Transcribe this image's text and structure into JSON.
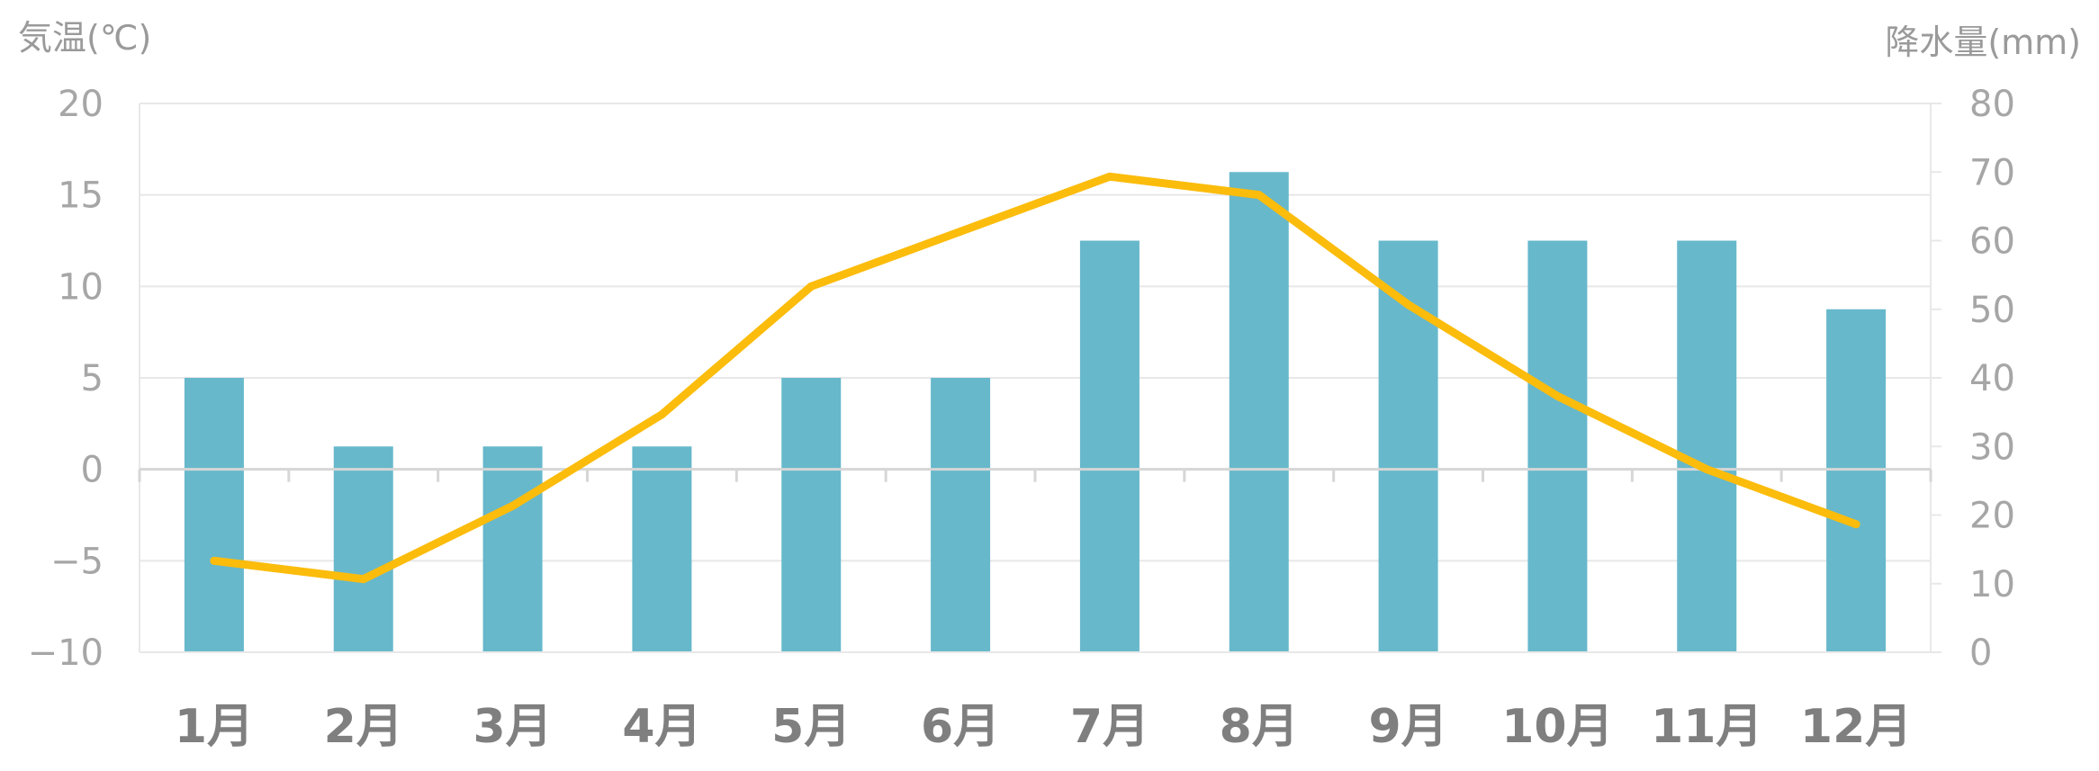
{
  "chart_data": {
    "type": "bar",
    "categories": [
      "1月",
      "2月",
      "3月",
      "4月",
      "5月",
      "6月",
      "7月",
      "8月",
      "9月",
      "10月",
      "11月",
      "12月"
    ],
    "series": [
      {
        "type": "bar",
        "axis": "right",
        "values": [
          40,
          30,
          30,
          30,
          40,
          40,
          60,
          70,
          60,
          60,
          60,
          50
        ]
      },
      {
        "type": "line",
        "axis": "left",
        "values": [
          -5,
          -6,
          -2,
          3,
          10,
          13,
          16,
          15,
          9,
          4,
          0,
          -3
        ]
      }
    ],
    "y_left": {
      "title": "気温(℃)",
      "range": [
        -10,
        20
      ],
      "ticks": [
        "20",
        "15",
        "10",
        "5",
        "0",
        "−5",
        "−10"
      ]
    },
    "y_right": {
      "title": "降水量(mm)",
      "range": [
        0,
        80
      ],
      "ticks": [
        "80",
        "70",
        "60",
        "50",
        "40",
        "30",
        "20",
        "10",
        "0"
      ]
    },
    "grid": true,
    "colors": {
      "bar": "#67b8cb",
      "line": "#fbbc0c",
      "grid": "#e8e8e8",
      "zero_line": "#d6d6d6",
      "tick_text": "#a6a6a6",
      "category_text": "#7f7f7f"
    }
  }
}
